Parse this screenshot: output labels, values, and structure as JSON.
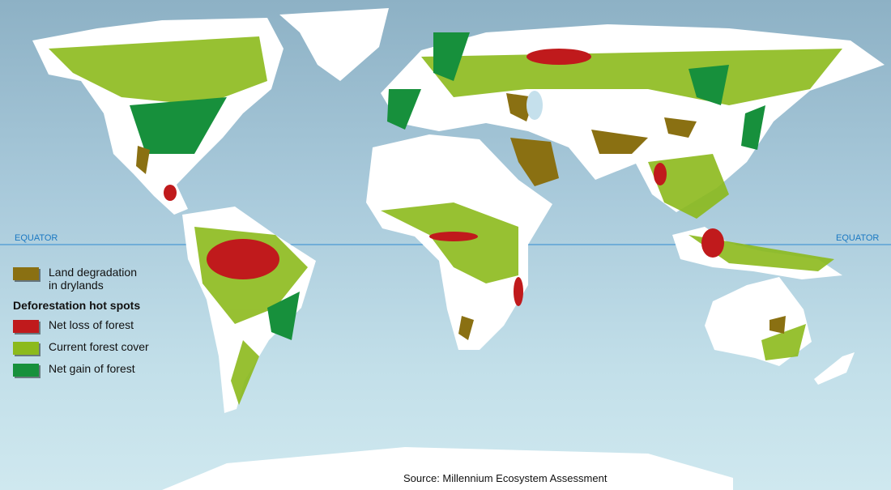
{
  "equator_label_left": "EQUATOR",
  "equator_label_right": "EQUATOR",
  "legend": {
    "drylands_label_line1": "Land degradation",
    "drylands_label_line2": "in drylands",
    "heading": "Deforestation hot spots",
    "items": [
      {
        "label": "Net loss of forest",
        "color": "#c01a1c"
      },
      {
        "label": "Current forest cover",
        "color": "#8cba1c"
      },
      {
        "label": "Net gain of forest",
        "color": "#17903c"
      }
    ],
    "drylands_color": "#8a7012"
  },
  "colors": {
    "land": "#ffffff",
    "equator_line": "#2f8ad0"
  },
  "source": "Source: Millennium Ecosystem Assessment"
}
